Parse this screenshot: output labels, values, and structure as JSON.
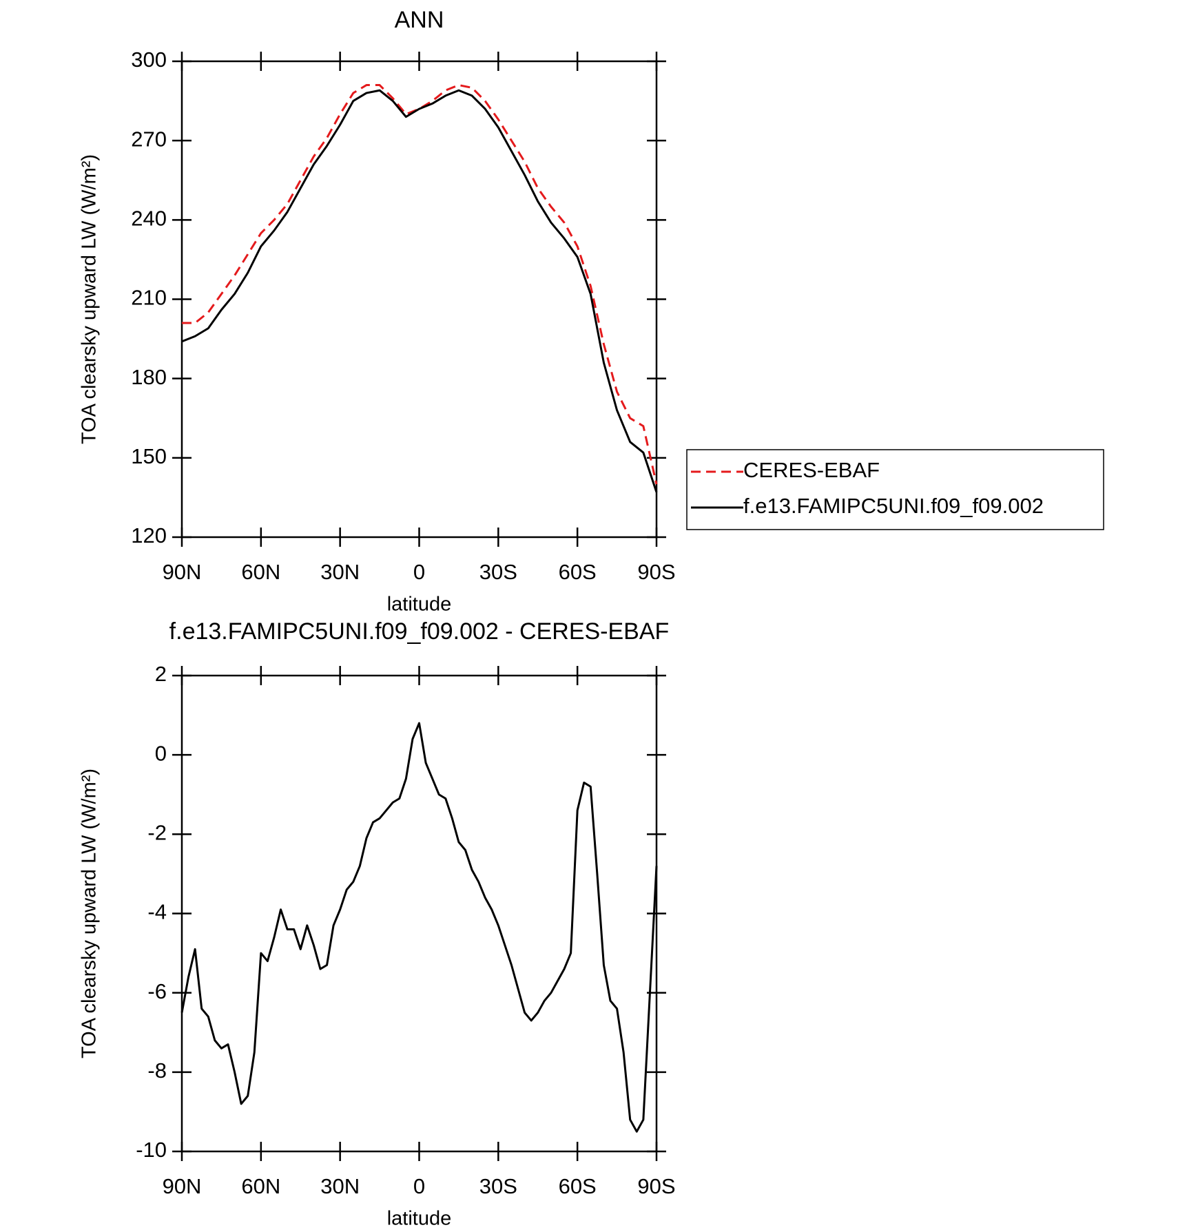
{
  "chart_data": [
    {
      "type": "line",
      "title": "ANN",
      "xlabel": "latitude",
      "ylabel": "TOA clearsky upward LW (W/m²)",
      "x": [
        90,
        85,
        80,
        75,
        70,
        65,
        60,
        55,
        50,
        45,
        40,
        35,
        30,
        25,
        20,
        15,
        10,
        5,
        0,
        -5,
        -10,
        -15,
        -20,
        -25,
        -30,
        -35,
        -40,
        -45,
        -50,
        -55,
        -60,
        -65,
        -70,
        -75,
        -80,
        -85,
        -90
      ],
      "series": [
        {
          "name": "CERES-EBAF",
          "color": "#e41a1c",
          "style": "dashed",
          "values": [
            201,
            201,
            205,
            212,
            219,
            227,
            235,
            240,
            246,
            255,
            264,
            271,
            280,
            288,
            291,
            291,
            286,
            280,
            282,
            285,
            289,
            291,
            290,
            285,
            278,
            270,
            262,
            252,
            245,
            239,
            230,
            215,
            193,
            175,
            165,
            162,
            140
          ]
        },
        {
          "name": "f.e13.FAMIPC5UNI.f09_f09.002",
          "color": "#000000",
          "style": "solid",
          "values": [
            194,
            196,
            199,
            206,
            212,
            220,
            230,
            236,
            243,
            252,
            261,
            268,
            276,
            285,
            288,
            289,
            285,
            279,
            282,
            284,
            287,
            289,
            287,
            282,
            275,
            266,
            257,
            247,
            239,
            233,
            226,
            212,
            186,
            168,
            156,
            152,
            137
          ]
        }
      ],
      "xlim": [
        90,
        -90
      ],
      "xticks": [
        {
          "value": 90,
          "label": "90N"
        },
        {
          "value": 60,
          "label": "60N"
        },
        {
          "value": 30,
          "label": "30N"
        },
        0,
        {
          "value": -30,
          "label": "30S"
        },
        {
          "value": -60,
          "label": "60S"
        },
        {
          "value": -90,
          "label": "90S"
        }
      ],
      "ylim": [
        120,
        300
      ],
      "yticks": [
        120,
        150,
        180,
        210,
        240,
        270,
        300
      ],
      "legend": "right"
    },
    {
      "type": "line",
      "title": "f.e13.FAMIPC5UNI.f09_f09.002 - CERES-EBAF",
      "xlabel": "latitude",
      "ylabel": "TOA clearsky upward LW (W/m²)",
      "x": [
        90,
        87.5,
        85,
        82.5,
        80,
        77.5,
        75,
        72.5,
        70,
        67.5,
        65,
        62.5,
        60,
        57.5,
        55,
        52.5,
        50,
        47.5,
        45,
        42.5,
        40,
        37.5,
        35,
        32.5,
        30,
        27.5,
        25,
        22.5,
        20,
        17.5,
        15,
        12.5,
        10,
        7.5,
        5,
        2.5,
        0,
        -2.5,
        -5,
        -7.5,
        -10,
        -12.5,
        -15,
        -17.5,
        -20,
        -22.5,
        -25,
        -27.5,
        -30,
        -32.5,
        -35,
        -37.5,
        -40,
        -42.5,
        -45,
        -47.5,
        -50,
        -52.5,
        -55,
        -57.5,
        -60,
        -62.5,
        -65,
        -67.5,
        -70,
        -72.5,
        -75,
        -77.5,
        -80,
        -82.5,
        -85,
        -87.5,
        -90
      ],
      "color": "#000000",
      "values": [
        -6.5,
        -5.6,
        -4.9,
        -6.4,
        -6.6,
        -7.2,
        -7.4,
        -7.3,
        -8.0,
        -8.8,
        -8.6,
        -7.5,
        -5.0,
        -5.2,
        -4.6,
        -3.9,
        -4.4,
        -4.4,
        -4.9,
        -4.3,
        -4.8,
        -5.4,
        -5.3,
        -4.3,
        -3.9,
        -3.4,
        -3.2,
        -2.8,
        -2.1,
        -1.7,
        -1.6,
        -1.4,
        -1.2,
        -1.1,
        -0.6,
        0.4,
        0.8,
        -0.2,
        -0.6,
        -1.0,
        -1.1,
        -1.6,
        -2.2,
        -2.4,
        -2.9,
        -3.2,
        -3.6,
        -3.9,
        -4.3,
        -4.8,
        -5.3,
        -5.9,
        -6.5,
        -6.7,
        -6.5,
        -6.2,
        -6.0,
        -5.7,
        -5.4,
        -5.0,
        -1.4,
        -0.7,
        -0.8,
        -3.0,
        -5.3,
        -6.2,
        -6.4,
        -7.5,
        -9.2,
        -9.5,
        -9.2,
        -6.0,
        -2.8
      ],
      "xlim": [
        90,
        -90
      ],
      "xticks": [
        {
          "value": 90,
          "label": "90N"
        },
        {
          "value": 60,
          "label": "60N"
        },
        {
          "value": 30,
          "label": "30N"
        },
        0,
        {
          "value": -30,
          "label": "30S"
        },
        {
          "value": -60,
          "label": "60S"
        },
        {
          "value": -90,
          "label": "90S"
        }
      ],
      "ylim": [
        -10,
        2
      ],
      "yticks": [
        -10,
        -8,
        -6,
        -4,
        -2,
        0,
        2
      ]
    }
  ]
}
